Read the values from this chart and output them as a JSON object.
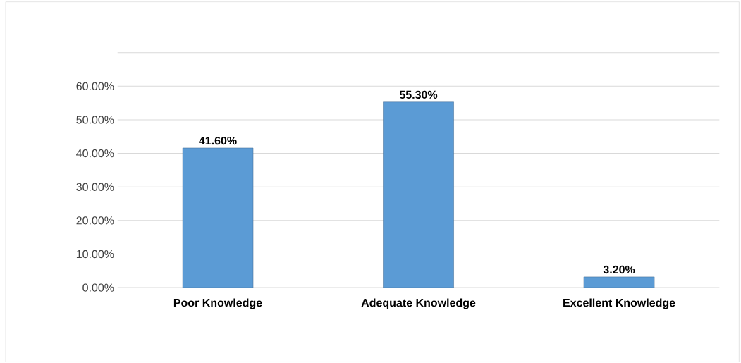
{
  "chart_data": {
    "type": "bar",
    "categories": [
      "Poor Knowledge",
      "Adequate Knowledge",
      "Excellent Knowledge"
    ],
    "values": [
      41.6,
      55.3,
      3.2
    ],
    "value_labels": [
      "41.60%",
      "55.30%",
      "3.20%"
    ],
    "color": "#5b9bd5",
    "ylim": [
      0,
      70
    ],
    "yticks": [
      {
        "value": 0,
        "label": "0.00%"
      },
      {
        "value": 10,
        "label": "10.00%"
      },
      {
        "value": 20,
        "label": "20.00%"
      },
      {
        "value": 30,
        "label": "30.00%"
      },
      {
        "value": 40,
        "label": "40.00%"
      },
      {
        "value": 50,
        "label": "50.00%"
      },
      {
        "value": 60,
        "label": "60.00%"
      },
      {
        "value": 70,
        "label": null
      }
    ],
    "grid": "y"
  }
}
